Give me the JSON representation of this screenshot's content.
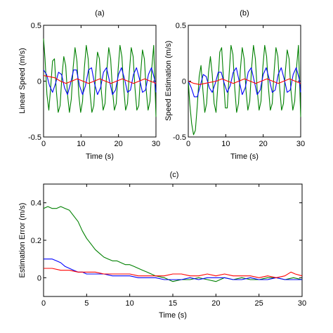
{
  "chart_data": [
    {
      "id": "a",
      "type": "line",
      "title": "(a)",
      "xlabel": "Time (s)",
      "ylabel": "Linear Speed (m/s)",
      "xlim": [
        0,
        30
      ],
      "ylim": [
        -0.5,
        0.5
      ],
      "xticks": [
        0,
        10,
        20,
        30
      ],
      "yticks": [
        -0.5,
        0,
        0.5
      ],
      "xtick_labels": [
        "0",
        "10",
        "20",
        "30"
      ],
      "ytick_labels": [
        "-0.5",
        "0",
        "0.5"
      ],
      "grid": false,
      "series": [
        {
          "color": "#008000",
          "x": [
            0,
            0.4,
            0.9,
            1.4,
            1.9,
            2.4,
            2.9,
            3.4,
            3.9,
            4.4,
            4.9,
            5.4,
            5.9,
            6.4,
            6.9,
            7.4,
            7.9,
            8.4,
            8.9,
            9.4,
            9.9,
            10.4,
            10.9,
            11.4,
            11.9,
            12.4,
            12.9,
            13.4,
            13.9,
            14.4,
            14.9,
            15.4,
            15.9,
            16.4,
            16.9,
            17.4,
            17.9,
            18.4,
            18.9,
            19.4,
            19.9,
            20.4,
            20.9,
            21.4,
            21.9,
            22.4,
            22.9,
            23.4,
            23.9,
            24.4,
            24.9,
            25.4,
            25.9,
            26.4,
            26.9,
            27.4,
            27.9,
            28.4,
            28.9,
            29.4,
            30
          ],
          "y": [
            0.38,
            0.2,
            -0.12,
            -0.26,
            -0.06,
            0.18,
            0.2,
            -0.08,
            -0.28,
            -0.22,
            0.04,
            0.22,
            0.14,
            -0.12,
            -0.28,
            -0.16,
            0.12,
            0.3,
            0.18,
            -0.12,
            -0.28,
            -0.18,
            0.12,
            0.32,
            0.2,
            -0.1,
            -0.28,
            -0.22,
            0.06,
            0.26,
            0.2,
            -0.08,
            -0.26,
            -0.2,
            0.1,
            0.3,
            0.2,
            -0.08,
            -0.26,
            -0.2,
            0.1,
            0.32,
            0.22,
            -0.06,
            -0.26,
            -0.2,
            0.08,
            0.3,
            0.22,
            -0.06,
            -0.26,
            -0.22,
            0.06,
            0.28,
            0.2,
            -0.08,
            -0.26,
            -0.18,
            0.12,
            0.32,
            -0.32
          ]
        },
        {
          "color": "#0000ff",
          "x": [
            0,
            0.8,
            1.6,
            2.4,
            3.2,
            4.0,
            4.8,
            5.6,
            6.4,
            7.2,
            8.0,
            8.8,
            9.6,
            10.4,
            11.2,
            12.0,
            12.8,
            13.6,
            14.4,
            15.2,
            16.0,
            16.8,
            17.6,
            18.4,
            19.2,
            20.0,
            20.8,
            21.6,
            22.4,
            23.2,
            24.0,
            24.8,
            25.6,
            26.4,
            27.2,
            28.0,
            28.8,
            29.6,
            30
          ],
          "y": [
            0.1,
            0.06,
            -0.04,
            -0.1,
            -0.02,
            0.08,
            0.06,
            -0.06,
            -0.12,
            -0.02,
            0.1,
            0.1,
            -0.04,
            -0.12,
            -0.04,
            0.1,
            0.12,
            -0.02,
            -0.12,
            -0.06,
            0.08,
            0.12,
            0.0,
            -0.12,
            -0.08,
            0.06,
            0.12,
            0.02,
            -0.1,
            -0.08,
            0.06,
            0.12,
            0.02,
            -0.1,
            -0.08,
            0.06,
            0.12,
            0.02,
            -0.1
          ]
        },
        {
          "color": "#ff0000",
          "x": [
            0,
            1.5,
            3,
            4.5,
            6,
            7.5,
            9,
            10.5,
            12,
            13.5,
            15,
            16.5,
            18,
            19.5,
            21,
            22.5,
            24,
            25.5,
            27,
            28.5,
            30
          ],
          "y": [
            0.05,
            0.04,
            0.03,
            0.0,
            -0.02,
            0.0,
            0.02,
            0.0,
            -0.02,
            0.0,
            0.02,
            0.0,
            -0.02,
            0.0,
            0.02,
            0.0,
            -0.02,
            0.0,
            0.02,
            0.0,
            -0.02
          ]
        }
      ]
    },
    {
      "id": "b",
      "type": "line",
      "title": "(b)",
      "xlabel": "Time (s)",
      "ylabel": "Speed Estimation (m/s)",
      "xlim": [
        0,
        30
      ],
      "ylim": [
        -0.5,
        0.5
      ],
      "xticks": [
        0,
        10,
        20,
        30
      ],
      "yticks": [
        -0.5,
        0,
        0.5
      ],
      "xtick_labels": [
        "0",
        "10",
        "20",
        "30"
      ],
      "ytick_labels": [
        "-0.5",
        "0",
        "0.5"
      ],
      "grid": false,
      "series": [
        {
          "color": "#008000",
          "x": [
            0,
            0.4,
            0.9,
            1.4,
            1.9,
            2.4,
            2.9,
            3.4,
            3.9,
            4.4,
            4.9,
            5.4,
            5.9,
            6.4,
            6.9,
            7.4,
            7.9,
            8.4,
            8.9,
            9.4,
            9.9,
            10.4,
            10.9,
            11.4,
            11.9,
            12.4,
            12.9,
            13.4,
            13.9,
            14.4,
            14.9,
            15.4,
            15.9,
            16.4,
            16.9,
            17.4,
            17.9,
            18.4,
            18.9,
            19.4,
            19.9,
            20.4,
            20.9,
            21.4,
            21.9,
            22.4,
            22.9,
            23.4,
            23.9,
            24.4,
            24.9,
            25.4,
            25.9,
            26.4,
            26.9,
            27.4,
            27.9,
            28.4,
            28.9,
            29.4,
            30
          ],
          "y": [
            0.0,
            -0.2,
            -0.38,
            -0.48,
            -0.44,
            -0.22,
            0.04,
            0.14,
            -0.08,
            -0.28,
            -0.2,
            0.08,
            0.22,
            0.06,
            -0.2,
            -0.28,
            -0.04,
            0.26,
            0.3,
            0.02,
            -0.24,
            -0.24,
            0.06,
            0.32,
            0.24,
            -0.06,
            -0.28,
            -0.2,
            0.1,
            0.3,
            0.2,
            -0.08,
            -0.26,
            -0.18,
            0.12,
            0.32,
            0.2,
            -0.08,
            -0.26,
            -0.18,
            0.12,
            0.32,
            0.22,
            -0.06,
            -0.26,
            -0.2,
            0.08,
            0.3,
            0.22,
            -0.06,
            -0.26,
            -0.2,
            0.08,
            0.28,
            0.2,
            -0.08,
            -0.26,
            -0.18,
            0.12,
            0.32,
            -0.32
          ]
        },
        {
          "color": "#0000ff",
          "x": [
            0,
            0.8,
            1.6,
            2.4,
            3.2,
            4.0,
            4.8,
            5.6,
            6.4,
            7.2,
            8.0,
            8.8,
            9.6,
            10.4,
            11.2,
            12.0,
            12.8,
            13.6,
            14.4,
            15.2,
            16.0,
            16.8,
            17.6,
            18.4,
            19.2,
            20.0,
            20.8,
            21.6,
            22.4,
            23.2,
            24.0,
            24.8,
            25.6,
            26.4,
            27.2,
            28.0,
            28.8,
            29.6,
            30
          ],
          "y": [
            0.0,
            -0.06,
            -0.14,
            -0.14,
            -0.04,
            0.06,
            0.04,
            -0.06,
            -0.1,
            -0.02,
            0.08,
            0.08,
            -0.02,
            -0.1,
            -0.04,
            0.08,
            0.12,
            0.0,
            -0.12,
            -0.06,
            0.08,
            0.12,
            0.0,
            -0.12,
            -0.08,
            0.06,
            0.12,
            0.02,
            -0.1,
            -0.08,
            0.06,
            0.12,
            0.02,
            -0.1,
            -0.08,
            0.06,
            0.12,
            0.02,
            -0.1
          ]
        },
        {
          "color": "#ff0000",
          "x": [
            0,
            1.5,
            3,
            4.5,
            6,
            7.5,
            9,
            10.5,
            12,
            13.5,
            15,
            16.5,
            18,
            19.5,
            21,
            22.5,
            24,
            25.5,
            27,
            28.5,
            30
          ],
          "y": [
            0.0,
            -0.02,
            -0.03,
            -0.02,
            -0.01,
            0.0,
            0.02,
            0.0,
            -0.02,
            0.0,
            0.02,
            0.0,
            -0.02,
            0.0,
            0.02,
            0.0,
            -0.02,
            0.0,
            0.02,
            0.0,
            -0.02
          ]
        }
      ]
    },
    {
      "id": "c",
      "type": "line",
      "title": "(c)",
      "xlabel": "Time (s)",
      "ylabel": "Estimation Error (m/s)",
      "xlim": [
        0,
        30
      ],
      "ylim": [
        -0.1,
        0.5
      ],
      "xticks": [
        0,
        5,
        10,
        15,
        20,
        25,
        30
      ],
      "yticks": [
        0,
        0.2,
        0.4
      ],
      "xtick_labels": [
        "0",
        "5",
        "10",
        "15",
        "20",
        "25",
        "30"
      ],
      "ytick_labels": [
        "0",
        "0.2",
        "0.4"
      ],
      "grid": false,
      "series": [
        {
          "color": "#008000",
          "x": [
            0,
            0.5,
            1,
            1.5,
            2,
            2.5,
            3,
            3.5,
            4,
            4.5,
            5,
            5.5,
            6,
            6.5,
            7,
            7.5,
            8,
            8.5,
            9,
            9.5,
            10,
            10.5,
            11,
            11.5,
            12,
            12.5,
            13,
            14,
            15,
            16,
            17,
            18,
            19,
            20,
            21,
            22,
            23,
            24,
            25,
            26,
            27,
            28,
            29,
            30
          ],
          "y": [
            0.37,
            0.38,
            0.37,
            0.37,
            0.38,
            0.37,
            0.36,
            0.33,
            0.3,
            0.25,
            0.21,
            0.18,
            0.15,
            0.13,
            0.11,
            0.1,
            0.09,
            0.09,
            0.08,
            0.07,
            0.07,
            0.06,
            0.05,
            0.04,
            0.03,
            0.02,
            0.01,
            0.0,
            -0.02,
            -0.01,
            -0.01,
            0.0,
            -0.01,
            -0.02,
            0.0,
            -0.01,
            0.0,
            -0.01,
            -0.01,
            0.0,
            0.0,
            -0.01,
            0.0,
            -0.01
          ]
        },
        {
          "color": "#0000ff",
          "x": [
            0,
            0.5,
            1,
            1.5,
            2,
            2.5,
            3,
            3.5,
            4,
            4.5,
            5,
            6,
            7,
            8,
            9,
            10,
            11,
            12,
            13,
            14,
            15,
            16,
            17,
            18,
            19,
            20,
            21,
            22,
            23,
            24,
            25,
            26,
            27,
            28,
            29,
            30
          ],
          "y": [
            0.1,
            0.1,
            0.1,
            0.09,
            0.08,
            0.06,
            0.05,
            0.04,
            0.03,
            0.03,
            0.02,
            0.02,
            0.02,
            0.01,
            0.01,
            0.01,
            0.0,
            0.0,
            0.0,
            -0.01,
            -0.01,
            -0.01,
            0.0,
            -0.01,
            0.0,
            0.0,
            0.0,
            -0.01,
            -0.01,
            0.0,
            -0.01,
            -0.01,
            0.0,
            -0.01,
            -0.01,
            -0.01
          ]
        },
        {
          "color": "#ff0000",
          "x": [
            0,
            1,
            2,
            3,
            4,
            5,
            6,
            7,
            8,
            9,
            10,
            11,
            12,
            13,
            14,
            15,
            16,
            17,
            18,
            19,
            20,
            21,
            22,
            23,
            24,
            25,
            26,
            27,
            28,
            28.7,
            29.2,
            30
          ],
          "y": [
            0.05,
            0.05,
            0.04,
            0.04,
            0.03,
            0.03,
            0.03,
            0.02,
            0.02,
            0.02,
            0.02,
            0.01,
            0.01,
            0.01,
            0.01,
            0.02,
            0.02,
            0.01,
            0.01,
            0.02,
            0.01,
            0.02,
            0.01,
            0.01,
            0.01,
            0.0,
            0.01,
            0.0,
            0.01,
            0.03,
            0.02,
            0.01
          ]
        }
      ]
    }
  ]
}
